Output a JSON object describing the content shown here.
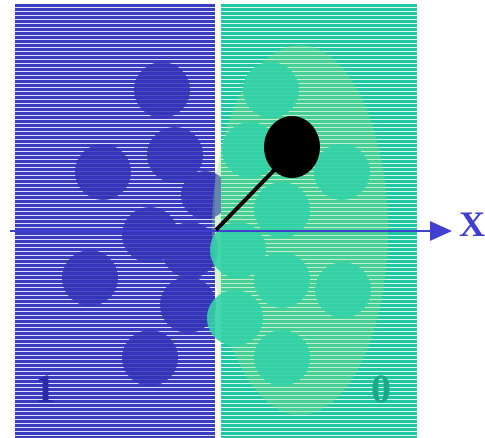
{
  "axis_label": "X",
  "labels": {
    "left": "1",
    "right": "0"
  }
}
